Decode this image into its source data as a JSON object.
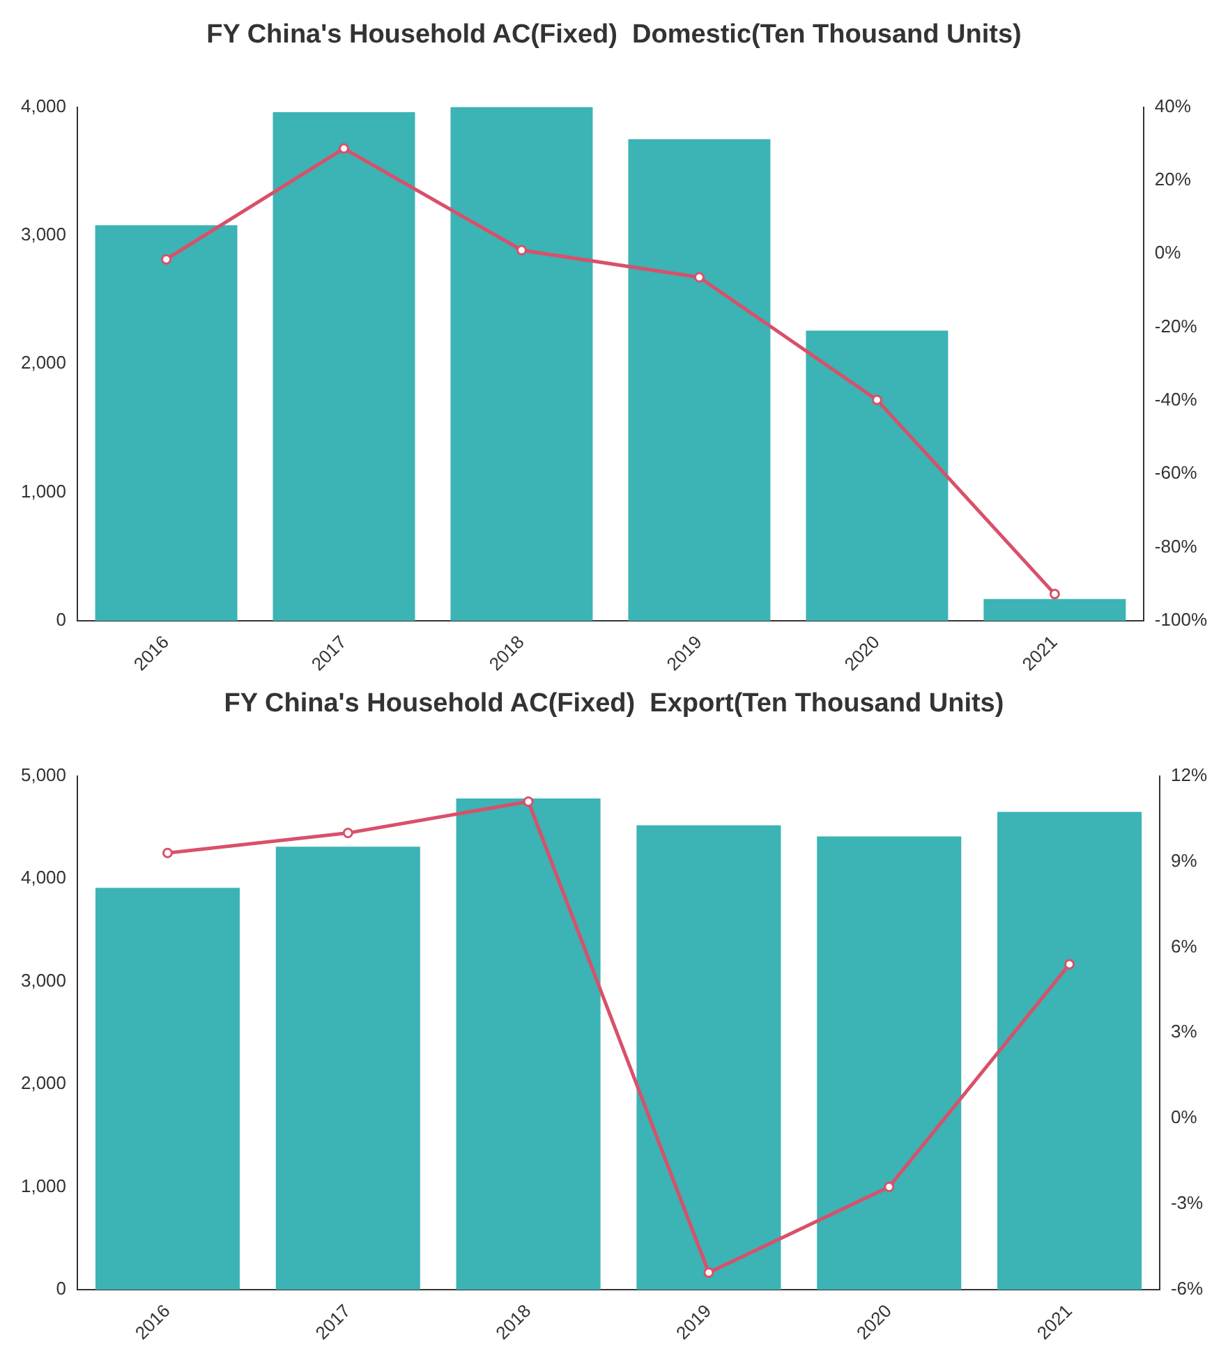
{
  "chart_data": [
    {
      "type": "bar",
      "title": "FY China's Household AC(Fixed)  Domestic(Ten Thousand Units)",
      "categories": [
        "2016",
        "2017",
        "2018",
        "2019",
        "2020",
        "2021"
      ],
      "series": [
        {
          "color": "#3cb3b4",
          "values": [
            3080,
            3960,
            4000,
            3750,
            2260,
            170
          ]
        },
        {
          "type": "line",
          "axis": "y2",
          "color": "#d9506a",
          "marker": "circle",
          "values": [
            -1.5,
            28.7,
            1,
            -6.4,
            -39.8,
            -92.7
          ]
        }
      ],
      "ylim": [
        0,
        4000
      ],
      "yticks": [
        0,
        {
          "value": 1000,
          "label": "1,000"
        },
        {
          "value": 2000,
          "label": "2,000"
        },
        {
          "value": 3000,
          "label": "3,000"
        },
        {
          "value": 4000,
          "label": "4,000"
        }
      ],
      "y2lim": [
        -100,
        40
      ],
      "y2ticks": [
        {
          "value": -100,
          "label": "-100%"
        },
        {
          "value": -80,
          "label": "-80%"
        },
        {
          "value": -60,
          "label": "-60%"
        },
        {
          "value": -40,
          "label": "-40%"
        },
        {
          "value": -20,
          "label": "-20%"
        },
        {
          "value": 0,
          "label": "0%"
        },
        {
          "value": 20,
          "label": "20%"
        },
        {
          "value": 40,
          "label": "40%"
        }
      ],
      "grid": false,
      "legend": false
    },
    {
      "type": "bar",
      "title": "FY China's Household AC(Fixed)  Export(Ten Thousand Units)",
      "categories": [
        "2016",
        "2017",
        "2018",
        "2019",
        "2020",
        "2021"
      ],
      "series": [
        {
          "color": "#3cb3b4",
          "values": [
            3910,
            4310,
            4780,
            4520,
            4410,
            4650
          ]
        },
        {
          "type": "line",
          "axis": "y2",
          "color": "#d9506a",
          "marker": "circle",
          "values": [
            9.3,
            10.0,
            11.1,
            -5.4,
            -2.4,
            5.4
          ]
        }
      ],
      "ylim": [
        0,
        5000
      ],
      "yticks": [
        0,
        {
          "value": 1000,
          "label": "1,000"
        },
        {
          "value": 2000,
          "label": "2,000"
        },
        {
          "value": 3000,
          "label": "3,000"
        },
        {
          "value": 4000,
          "label": "4,000"
        },
        {
          "value": 5000,
          "label": "5,000"
        }
      ],
      "y2lim": [
        -6,
        12
      ],
      "y2ticks": [
        {
          "value": -6,
          "label": "-6%"
        },
        {
          "value": -3,
          "label": "-3%"
        },
        {
          "value": 0,
          "label": "0%"
        },
        {
          "value": 3,
          "label": "3%"
        },
        {
          "value": 6,
          "label": "6%"
        },
        {
          "value": 9,
          "label": "9%"
        },
        {
          "value": 12,
          "label": "12%"
        }
      ],
      "grid": false,
      "legend": false
    }
  ]
}
